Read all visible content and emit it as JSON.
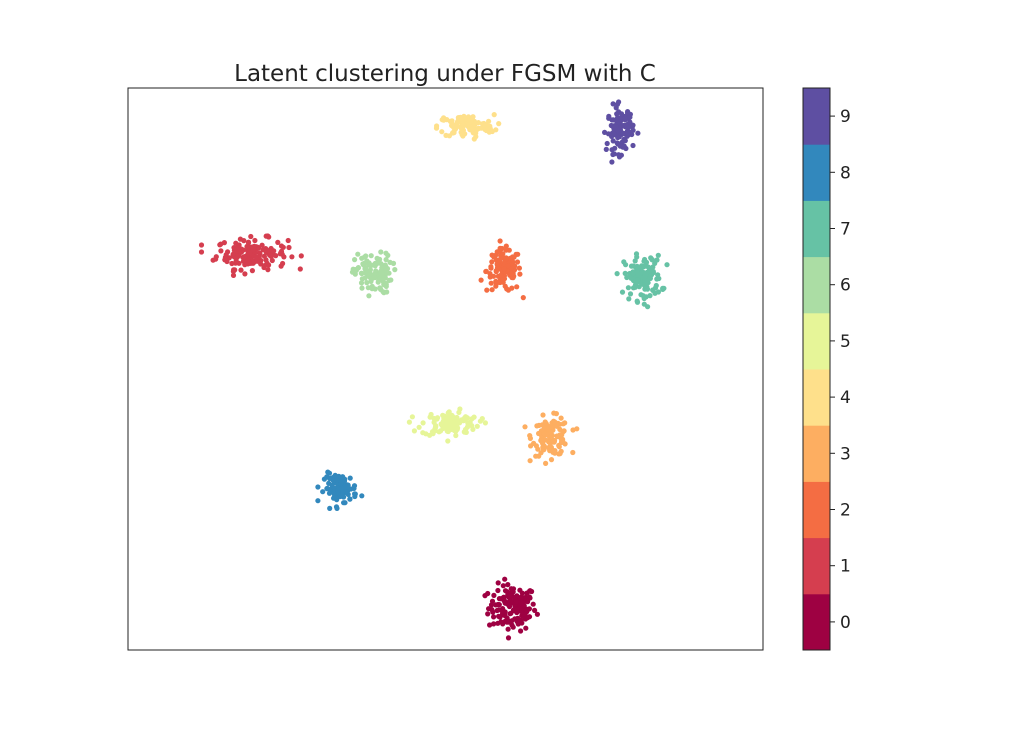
{
  "chart_data": {
    "type": "scatter",
    "title": "Latent clustering under FGSM with C",
    "xlabel": "",
    "ylabel": "",
    "x_ticks_visible": false,
    "y_ticks_visible": false,
    "xlim": [
      0,
      100
    ],
    "ylim": [
      0,
      100
    ],
    "grid": false,
    "legend": "colorbar-right",
    "colorbar": {
      "ticks": [
        "0",
        "1",
        "2",
        "3",
        "4",
        "5",
        "6",
        "7",
        "8",
        "9"
      ],
      "colors": [
        "#9e0142",
        "#d53e4f",
        "#f46d43",
        "#fdae61",
        "#fee08b",
        "#e6f598",
        "#abdda4",
        "#66c2a5",
        "#3288bd",
        "#5e4fa2"
      ]
    },
    "clusters": [
      {
        "label": 0,
        "center": [
          60.5,
          7.5
        ],
        "spread": [
          2.2,
          2.4
        ],
        "n": 140
      },
      {
        "label": 1,
        "center": [
          19.5,
          70.5
        ],
        "spread": [
          3.3,
          1.6
        ],
        "n": 160
      },
      {
        "label": 2,
        "center": [
          59.2,
          67.5
        ],
        "spread": [
          1.6,
          2.2
        ],
        "n": 120
      },
      {
        "label": 3,
        "center": [
          66.6,
          38.0
        ],
        "spread": [
          1.7,
          2.0
        ],
        "n": 120
      },
      {
        "label": 4,
        "center": [
          53.2,
          93.2
        ],
        "spread": [
          2.6,
          1.2
        ],
        "n": 110
      },
      {
        "label": 5,
        "center": [
          50.8,
          40.3
        ],
        "spread": [
          2.7,
          1.3
        ],
        "n": 110
      },
      {
        "label": 6,
        "center": [
          38.6,
          67.0
        ],
        "spread": [
          1.7,
          2.1
        ],
        "n": 110
      },
      {
        "label": 7,
        "center": [
          81.1,
          66.2
        ],
        "spread": [
          1.7,
          2.3
        ],
        "n": 120
      },
      {
        "label": 8,
        "center": [
          33.5,
          28.8
        ],
        "spread": [
          1.5,
          1.5
        ],
        "n": 100
      },
      {
        "label": 9,
        "center": [
          77.5,
          92.6
        ],
        "spread": [
          1.2,
          2.4
        ],
        "n": 110
      }
    ]
  }
}
